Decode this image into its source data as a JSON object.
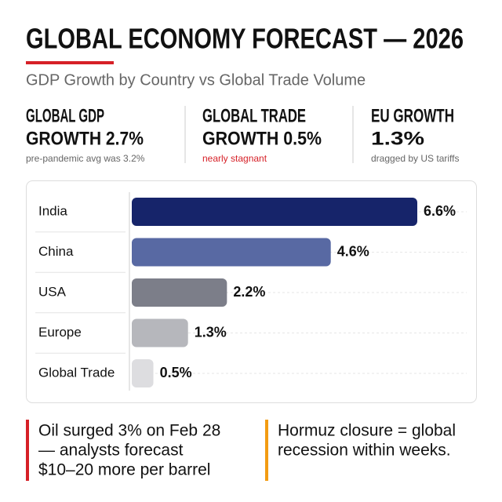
{
  "header": {
    "title": "GLOBAL ECONOMY FORECAST — 2026",
    "subtitle": "GDP Growth by Country vs Global Trade Volume"
  },
  "stats": [
    {
      "heading": [
        "GLOBAL GDP",
        "GROWTH 2.7%"
      ],
      "note": "pre-pandemic avg was 3.2%"
    },
    {
      "heading": [
        "GLOBAL TRADE",
        "GROWTH 0.5%"
      ],
      "note": "nearly stagnant"
    },
    {
      "heading": [
        "EU GROWTH",
        "1.3%"
      ],
      "note": "dragged by US tariffs"
    }
  ],
  "chart_data": {
    "type": "bar",
    "orientation": "horizontal",
    "categories": [
      "India",
      "China",
      "USA",
      "Europe",
      "Global Trade"
    ],
    "values": [
      6.6,
      4.6,
      2.2,
      1.3,
      0.5
    ],
    "value_labels": [
      "6.6%",
      "4.6%",
      "2.2%",
      "1.3%",
      "0.5%"
    ],
    "colors": [
      "#16246a",
      "#5869a3",
      "#7c7e89",
      "#b6b7bc",
      "#dddde0"
    ]
  },
  "notes": [
    {
      "lines": [
        "Oil surged 3% on Feb 28",
        "— analysts forecast",
        "$10–20 more per barrel"
      ],
      "color": "#d62027"
    },
    {
      "lines": [
        "Hormuz closure = global",
        "recession within weeks."
      ],
      "color": "#f39c12"
    }
  ]
}
